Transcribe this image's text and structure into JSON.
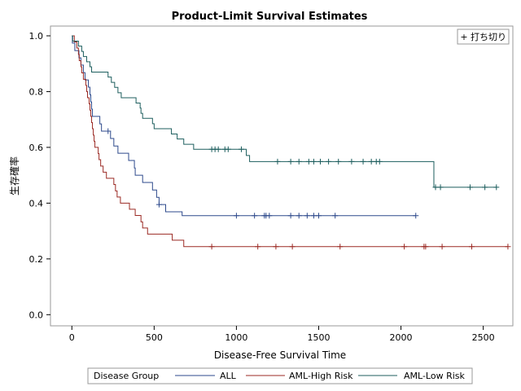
{
  "chart_data": {
    "type": "line",
    "title": "Product-Limit Survival Estimates",
    "xlabel": "Disease-Free Survival Time",
    "ylabel": "生存確率",
    "xlim": [
      -130,
      2680
    ],
    "ylim": [
      -0.04,
      1.035
    ],
    "xticks": [
      0,
      500,
      1000,
      1500,
      2000,
      2500
    ],
    "yticks": [
      0.0,
      0.2,
      0.4,
      0.6,
      0.8,
      1.0
    ],
    "ytick_labels": [
      "0.0",
      "0.2",
      "0.4",
      "0.6",
      "0.8",
      "1.0"
    ],
    "inset_legend": {
      "label": "打ち切り",
      "marker": "+"
    },
    "legend": {
      "title": "Disease Group",
      "position": "bottom"
    },
    "series": [
      {
        "name": "ALL",
        "color": "#2e4a8c",
        "steps": [
          [
            0,
            1.0
          ],
          [
            3,
            0.974
          ],
          [
            18,
            0.947
          ],
          [
            43,
            0.921
          ],
          [
            55,
            0.895
          ],
          [
            70,
            0.868
          ],
          [
            80,
            0.842
          ],
          [
            100,
            0.816
          ],
          [
            110,
            0.789
          ],
          [
            115,
            0.763
          ],
          [
            120,
            0.737
          ],
          [
            125,
            0.711
          ],
          [
            170,
            0.684
          ],
          [
            180,
            0.658
          ],
          [
            235,
            0.632
          ],
          [
            255,
            0.605
          ],
          [
            280,
            0.579
          ],
          [
            345,
            0.553
          ],
          [
            380,
            0.526
          ],
          [
            385,
            0.5
          ],
          [
            430,
            0.474
          ],
          [
            490,
            0.447
          ],
          [
            515,
            0.421
          ],
          [
            530,
            0.395
          ],
          [
            570,
            0.369
          ],
          [
            670,
            0.355
          ]
        ],
        "end": 2090,
        "censored": [
          220,
          530,
          1000,
          1110,
          1170,
          1180,
          1200,
          1330,
          1380,
          1430,
          1470,
          1500,
          1600,
          2090
        ]
      },
      {
        "name": "AML-High Risk",
        "color": "#9b2a24",
        "steps": [
          [
            0,
            1.0
          ],
          [
            15,
            0.978
          ],
          [
            30,
            0.956
          ],
          [
            40,
            0.933
          ],
          [
            45,
            0.911
          ],
          [
            55,
            0.889
          ],
          [
            60,
            0.867
          ],
          [
            70,
            0.844
          ],
          [
            85,
            0.822
          ],
          [
            90,
            0.8
          ],
          [
            95,
            0.778
          ],
          [
            105,
            0.756
          ],
          [
            110,
            0.733
          ],
          [
            115,
            0.711
          ],
          [
            120,
            0.689
          ],
          [
            125,
            0.667
          ],
          [
            130,
            0.644
          ],
          [
            135,
            0.622
          ],
          [
            140,
            0.6
          ],
          [
            160,
            0.578
          ],
          [
            165,
            0.556
          ],
          [
            175,
            0.533
          ],
          [
            190,
            0.511
          ],
          [
            210,
            0.489
          ],
          [
            255,
            0.467
          ],
          [
            265,
            0.444
          ],
          [
            275,
            0.422
          ],
          [
            295,
            0.4
          ],
          [
            350,
            0.378
          ],
          [
            385,
            0.356
          ],
          [
            420,
            0.333
          ],
          [
            430,
            0.311
          ],
          [
            460,
            0.289
          ],
          [
            610,
            0.267
          ],
          [
            680,
            0.244
          ]
        ],
        "end": 2650,
        "censored": [
          850,
          1130,
          1240,
          1340,
          1630,
          2020,
          2140,
          2150,
          2250,
          2430,
          2650
        ]
      },
      {
        "name": "AML-Low Risk",
        "color": "#1d5e5e",
        "steps": [
          [
            0,
            1.0
          ],
          [
            5,
            0.981
          ],
          [
            40,
            0.963
          ],
          [
            60,
            0.944
          ],
          [
            70,
            0.926
          ],
          [
            90,
            0.907
          ],
          [
            110,
            0.889
          ],
          [
            120,
            0.87
          ],
          [
            220,
            0.852
          ],
          [
            240,
            0.833
          ],
          [
            260,
            0.815
          ],
          [
            280,
            0.796
          ],
          [
            300,
            0.778
          ],
          [
            390,
            0.759
          ],
          [
            415,
            0.741
          ],
          [
            420,
            0.722
          ],
          [
            430,
            0.704
          ],
          [
            490,
            0.685
          ],
          [
            500,
            0.667
          ],
          [
            605,
            0.648
          ],
          [
            640,
            0.63
          ],
          [
            680,
            0.611
          ],
          [
            740,
            0.593
          ],
          [
            1060,
            0.571
          ],
          [
            1080,
            0.549
          ],
          [
            2200,
            0.457
          ]
        ],
        "end": 2580,
        "censored": [
          850,
          870,
          890,
          930,
          950,
          1030,
          1250,
          1330,
          1380,
          1440,
          1470,
          1510,
          1560,
          1620,
          1700,
          1770,
          1820,
          1850,
          1870,
          2210,
          2240,
          2420,
          2510,
          2580
        ]
      }
    ]
  }
}
